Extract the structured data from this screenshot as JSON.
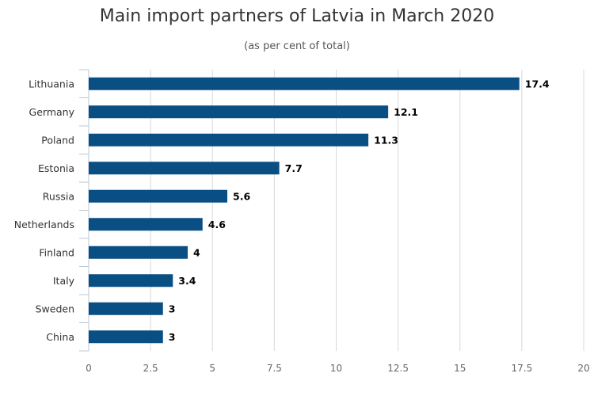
{
  "chart_data": {
    "type": "bar",
    "orientation": "horizontal",
    "title": "Main import partners of Latvia in March 2020",
    "subtitle": "(as per cent of total)",
    "xlabel": "",
    "ylabel": "",
    "categories": [
      "Lithuania",
      "Germany",
      "Poland",
      "Estonia",
      "Russia",
      "Netherlands",
      "Finland",
      "Italy",
      "Sweden",
      "China"
    ],
    "values": [
      17.4,
      12.1,
      11.3,
      7.7,
      5.6,
      4.6,
      4,
      3.4,
      3,
      3
    ],
    "value_labels": [
      "17.4",
      "12.1",
      "11.3",
      "7.7",
      "5.6",
      "4.6",
      "4",
      "3.4",
      "3",
      "3"
    ],
    "xlim": [
      0,
      20
    ],
    "x_ticks": [
      0,
      2.5,
      5,
      7.5,
      10,
      12.5,
      15,
      17.5,
      20
    ],
    "x_tick_labels": [
      "0",
      "2.5",
      "5",
      "7.5",
      "10",
      "12.5",
      "15",
      "17.5",
      "20"
    ],
    "grid": "vertical",
    "legend": "none",
    "colors": {
      "bar": "#0a4f84",
      "grid": "#d8d8d8",
      "axis": "#bcc6d3",
      "title": "#333333"
    }
  }
}
